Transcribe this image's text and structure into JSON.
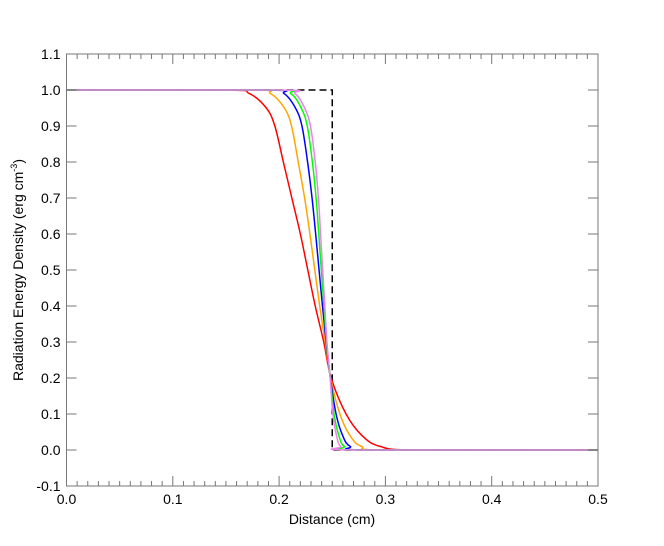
{
  "chart_data": {
    "type": "line",
    "title": "",
    "xlabel": "Distance (cm)",
    "ylabel_main": "Radiation Energy Density (erg cm",
    "ylabel_sup": "-3",
    "ylabel_close": ")",
    "xlim": [
      0.0,
      0.5
    ],
    "ylim": [
      -0.1,
      1.1
    ],
    "xticks": [
      "0.0",
      "0.1",
      "0.2",
      "0.3",
      "0.4",
      "0.5"
    ],
    "xtick_values": [
      0.0,
      0.1,
      0.2,
      0.3,
      0.4,
      0.5
    ],
    "xminor_step": 0.01,
    "yticks": [
      "-0.1",
      "0.0",
      "0.1",
      "0.2",
      "0.3",
      "0.4",
      "0.5",
      "0.6",
      "0.7",
      "0.8",
      "0.9",
      "1.0",
      "1.1"
    ],
    "ytick_values": [
      -0.1,
      0.0,
      0.1,
      0.2,
      0.3,
      0.4,
      0.5,
      0.6,
      0.7,
      0.8,
      0.9,
      1.0,
      1.1
    ],
    "grid": false,
    "axis_color": "#777777",
    "reference": {
      "style": "dashed",
      "color": "#000000",
      "x": [
        0.0,
        0.25,
        0.25,
        0.5
      ],
      "y": [
        1.0,
        1.0,
        0.0,
        0.0
      ]
    },
    "y_levels": [
      1.0,
      0.99,
      0.95,
      0.9,
      0.8,
      0.7,
      0.6,
      0.5,
      0.4,
      0.3,
      0.2,
      0.1,
      0.04,
      0.01,
      0.0
    ],
    "series": [
      {
        "color": "#ff0000",
        "x": [
          0.15,
          0.172,
          0.188,
          0.196,
          0.204,
          0.212,
          0.22,
          0.227,
          0.234,
          0.242,
          0.249,
          0.263,
          0.278,
          0.295,
          0.33
        ]
      },
      {
        "color": "#ffa500",
        "x": [
          0.1735,
          0.192,
          0.205,
          0.2117,
          0.218,
          0.224,
          0.229,
          0.2336,
          0.2382,
          0.2434,
          0.2485,
          0.2572,
          0.2667,
          0.2776,
          0.3017
        ]
      },
      {
        "color": "#0000ff",
        "x": [
          0.188,
          0.2047,
          0.2154,
          0.2215,
          0.2268,
          0.231,
          0.2344,
          0.2376,
          0.2408,
          0.2443,
          0.2482,
          0.2536,
          0.2598,
          0.2669,
          0.2844
        ]
      },
      {
        "color": "#00ff00",
        "x": [
          0.1955,
          0.2111,
          0.2208,
          0.2265,
          0.2313,
          0.2348,
          0.2373,
          0.2397,
          0.2422,
          0.2447,
          0.2481,
          0.2517,
          0.2562,
          0.2613,
          0.2754
        ]
      },
      {
        "color": "#ee82ee",
        "x": [
          0.2,
          0.215,
          0.224,
          0.2295,
          0.234,
          0.237,
          0.239,
          0.241,
          0.243,
          0.245,
          0.248,
          0.2506,
          0.254,
          0.258,
          0.27
        ]
      }
    ]
  }
}
